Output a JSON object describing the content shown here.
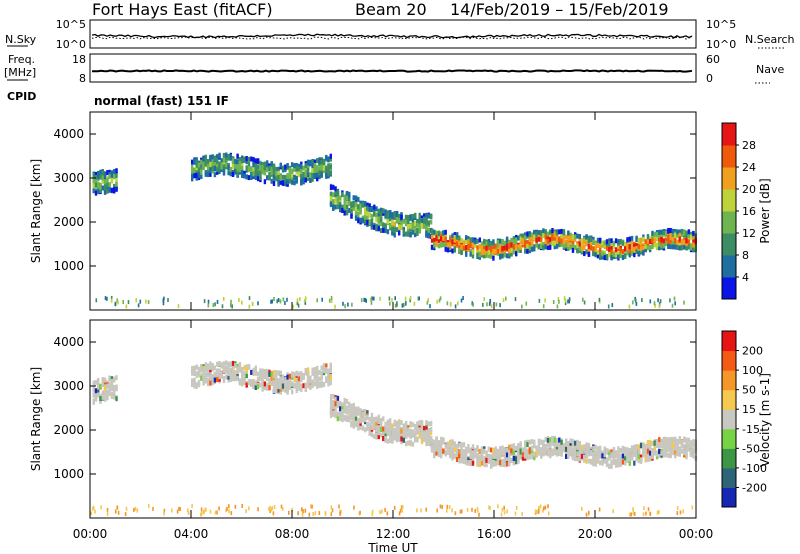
{
  "header": {
    "station": "Fort Hays East (fitACF)",
    "beam": "Beam 20",
    "dates": "14/Feb/2019 – 15/Feb/2019"
  },
  "strip_noise": {
    "left_label": "N.Sky",
    "right_label": "N.Search",
    "left_ticks": [
      "10^5",
      "10^0"
    ],
    "right_ticks": [
      "10^5",
      "10^0"
    ]
  },
  "strip_freq": {
    "left_label_1": "Freq.",
    "left_label_2": "[MHz]",
    "right_label": "Nave",
    "left_ticks": [
      "18",
      "8"
    ],
    "right_ticks": [
      "60",
      "0"
    ]
  },
  "cpid": {
    "label": "CPID",
    "value": "normal (fast) 151 IF"
  },
  "chart_data": [
    {
      "type": "heatmap",
      "parameter": "Power",
      "ylabel": "Slant Range [km]",
      "xlabel": "Time UT",
      "ylim": [
        0,
        4500
      ],
      "yticks": [
        "4000",
        "3000",
        "2000",
        "1000"
      ],
      "xticks": [
        "00:00",
        "04:00",
        "08:00",
        "12:00",
        "16:00",
        "20:00",
        "00:00"
      ],
      "colorbar": {
        "label": "Power [dB]",
        "ticks": [
          "28",
          "24",
          "20",
          "16",
          "12",
          "8",
          "4"
        ],
        "colors": [
          "#0a14e6",
          "#1e6ea0",
          "#3c8c64",
          "#6eb450",
          "#bed23c",
          "#f0a01e",
          "#ee5a0a",
          "#e61414"
        ]
      },
      "echo_bands": [
        {
          "t0": 0.1,
          "t1": 1.0,
          "center_km": 2900,
          "width_km": 500,
          "level": 0.45
        },
        {
          "t0": 4.0,
          "t1": 9.5,
          "center_km": 3250,
          "width_km": 450,
          "level": 0.4
        },
        {
          "t0": 9.5,
          "t1": 13.5,
          "center_km": 2500,
          "width_km": 500,
          "level": 0.45
        },
        {
          "t0": 13.5,
          "t1": 24.0,
          "center_km": 1550,
          "width_km": 400,
          "level": 0.95
        }
      ]
    },
    {
      "type": "heatmap",
      "parameter": "Velocity",
      "ylabel": "Slant Range [km]",
      "xlabel": "Time UT",
      "ylim": [
        0,
        4500
      ],
      "yticks": [
        "4000",
        "3000",
        "2000",
        "1000"
      ],
      "xticks": [
        "00:00",
        "04:00",
        "08:00",
        "12:00",
        "16:00",
        "20:00",
        "00:00"
      ],
      "colorbar": {
        "label": "Velocity [m s-1]",
        "ticks": [
          "200",
          "100",
          "50",
          "15",
          "-15",
          "-50",
          "-100",
          "-200"
        ],
        "colors": [
          "#1428b4",
          "#2d6478",
          "#3c9646",
          "#78d246",
          "#c8c8c0",
          "#f5c850",
          "#f59628",
          "#f55a14",
          "#e61414"
        ]
      },
      "echo_bands": [
        {
          "t0": 0.1,
          "t1": 1.0,
          "center_km": 2900,
          "width_km": 500,
          "level": 0.5
        },
        {
          "t0": 4.0,
          "t1": 9.5,
          "center_km": 3250,
          "width_km": 450,
          "level": 0.5
        },
        {
          "t0": 9.5,
          "t1": 13.5,
          "center_km": 2500,
          "width_km": 500,
          "level": 0.5
        },
        {
          "t0": 13.5,
          "t1": 24.0,
          "center_km": 1550,
          "width_km": 400,
          "level": 0.5
        }
      ]
    }
  ],
  "xlabel": "Time UT"
}
